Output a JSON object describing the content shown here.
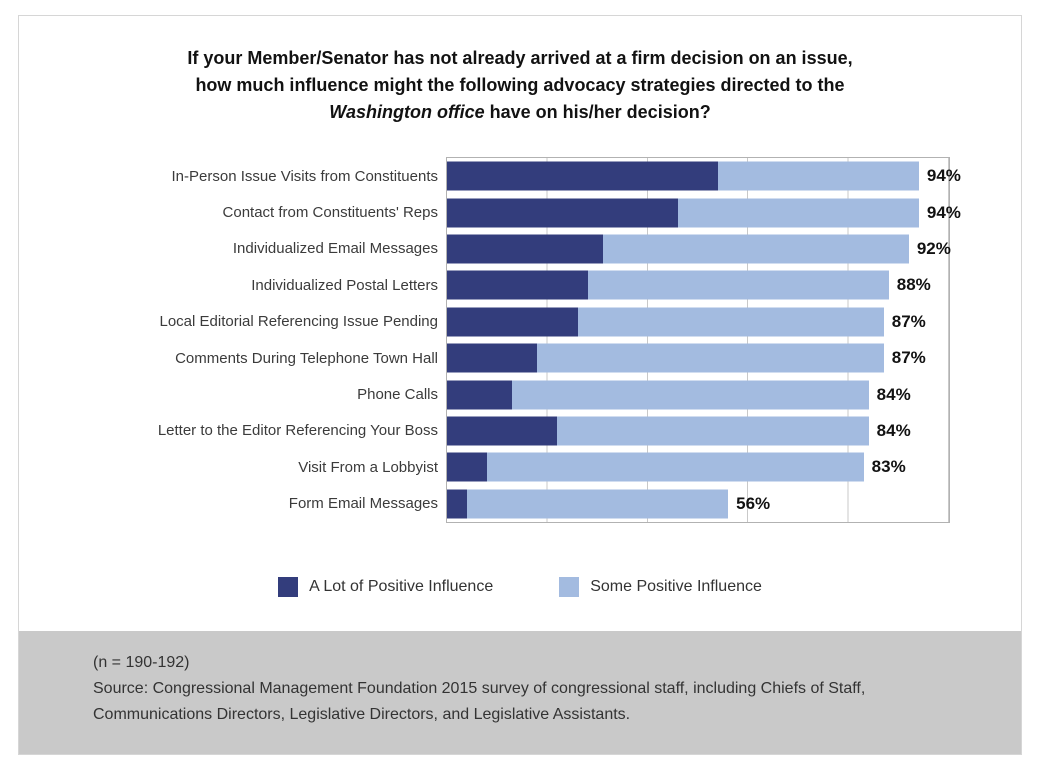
{
  "title": {
    "line1": "If your Member/Senator has not already arrived at a firm decision on an issue,",
    "line2": "how much influence might the following advocacy strategies directed to the",
    "line3_italic": "Washington office",
    "line3_rest": " have on his/her decision?"
  },
  "chart_data": {
    "type": "bar",
    "orientation": "horizontal",
    "stacked": true,
    "categories": [
      "In-Person Issue Visits from Constituents",
      "Contact from Constituents' Reps",
      "Individualized Email Messages",
      "Individualized Postal Letters",
      "Local Editorial Referencing Issue Pending",
      "Comments During Telephone Town Hall",
      "Phone Calls",
      "Letter to the Editor Referencing Your Boss",
      "Visit From a Lobbyist",
      "Form Email Messages"
    ],
    "series": [
      {
        "name": "A Lot of Positive Influence",
        "color": "#333d7c",
        "values": [
          54,
          46,
          31,
          28,
          26,
          18,
          13,
          22,
          8,
          4
        ]
      },
      {
        "name": "Some Positive Influence",
        "color": "#a3bbe0",
        "values": [
          40,
          48,
          61,
          60,
          61,
          69,
          71,
          62,
          75,
          52
        ]
      }
    ],
    "totals_labels": [
      "94%",
      "94%",
      "92%",
      "88%",
      "87%",
      "87%",
      "84%",
      "84%",
      "83%",
      "56%"
    ],
    "xlabel": "",
    "ylabel": "",
    "xlim": [
      0,
      100
    ],
    "gridline_interval": 20,
    "grid": true,
    "legend_position": "bottom"
  },
  "legend": {
    "items": [
      {
        "label": "A Lot of Positive Influence",
        "color": "#333d7c"
      },
      {
        "label": "Some Positive Influence",
        "color": "#a3bbe0"
      }
    ]
  },
  "footer": {
    "n_note": "(n = 190-192)",
    "source_text": "Source: Congressional Management Foundation 2015 survey of congressional staff, including Chiefs of Staff, Communications Directors, Legislative Directors, and Legislative Assistants."
  },
  "colors": {
    "a_lot": "#333d7c",
    "some": "#a3bbe0",
    "plot_border": "#b2b2b2",
    "gridline": "#c9c9c9",
    "footer_band": "#c9c9c9",
    "text": "#121212"
  }
}
